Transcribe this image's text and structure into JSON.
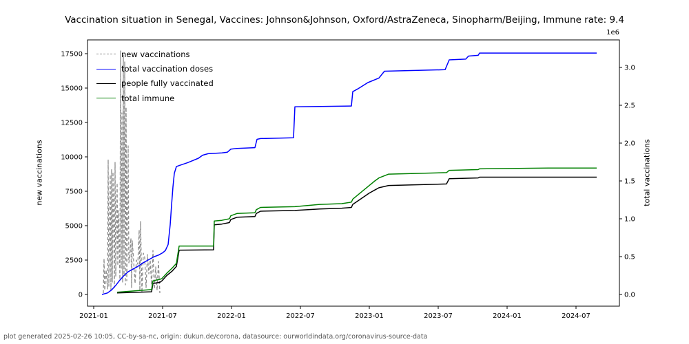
{
  "title": "Vaccination situation in Senegal, Vaccines: Johnson&Johnson, Oxford/AstraZeneca, Sinopharm/Beijing, Immune rate: 9.4",
  "footer": "plot generated 2025-02-26 10:05, CC-by-sa-nc, origin: dukun.de/corona, datasource: ourworldindata.org/coronavirus-source-data",
  "legend": [
    {
      "label": "new vaccinations",
      "color": "#8c8c8c",
      "style": "dashed"
    },
    {
      "label": "total vaccination doses",
      "color": "#0000ff",
      "style": "solid"
    },
    {
      "label": "people fully vaccinated",
      "color": "#000000",
      "style": "solid"
    },
    {
      "label": "total immune",
      "color": "#008000",
      "style": "solid"
    }
  ],
  "chart_data": {
    "type": "line",
    "title": "Vaccination situation in Senegal, Vaccines: Johnson&Johnson, Oxford/AstraZeneca, Sinopharm/Beijing, Immune rate: 9.4",
    "xlabel": "",
    "left_y_axis": {
      "label": "new vaccinations",
      "ticks": [
        0,
        2500,
        5000,
        7500,
        10000,
        12500,
        15000,
        17500
      ],
      "range_top": 18600
    },
    "right_y_axis": {
      "label": "total vaccinations",
      "multiplier_label": "1e6",
      "ticks": [
        "0.0",
        "0.5",
        "1.0",
        "1.5",
        "2.0",
        "2.5",
        "3.0"
      ],
      "tick_values": [
        0.0,
        0.5,
        1.0,
        1.5,
        2.0,
        2.5,
        3.0
      ],
      "range_top": 3.37
    },
    "x_axis": {
      "tick_labels": [
        "2021-01",
        "2021-07",
        "2022-01",
        "2022-07",
        "2023-01",
        "2023-07",
        "2024-01",
        "2024-07"
      ],
      "tick_years": [
        2021.0,
        2021.5,
        2022.0,
        2022.5,
        2023.0,
        2023.5,
        2024.0,
        2024.5
      ],
      "xlim": [
        2020.955,
        2024.815
      ]
    },
    "grid": false,
    "legend_position": "upper-left, frameless",
    "series": [
      {
        "name": "new vaccinations",
        "axis": "left",
        "color": "#8c8c8c",
        "style": "dashed",
        "units": "doses/day",
        "points": [
          [
            2021.07,
            100
          ],
          [
            2021.075,
            2600
          ],
          [
            2021.08,
            300
          ],
          [
            2021.09,
            1800
          ],
          [
            2021.1,
            400
          ],
          [
            2021.105,
            9800
          ],
          [
            2021.11,
            600
          ],
          [
            2021.12,
            8700
          ],
          [
            2021.125,
            300
          ],
          [
            2021.13,
            9100
          ],
          [
            2021.135,
            900
          ],
          [
            2021.14,
            8900
          ],
          [
            2021.15,
            500
          ],
          [
            2021.155,
            9600
          ],
          [
            2021.16,
            1300
          ],
          [
            2021.17,
            8100
          ],
          [
            2021.175,
            2100
          ],
          [
            2021.18,
            6100
          ],
          [
            2021.19,
            1100
          ],
          [
            2021.195,
            17700
          ],
          [
            2021.2,
            1900
          ],
          [
            2021.205,
            13200
          ],
          [
            2021.21,
            900
          ],
          [
            2021.215,
            17400
          ],
          [
            2021.22,
            1400
          ],
          [
            2021.225,
            16900
          ],
          [
            2021.23,
            700
          ],
          [
            2021.235,
            13600
          ],
          [
            2021.24,
            1000
          ],
          [
            2021.25,
            10800
          ],
          [
            2021.255,
            2300
          ],
          [
            2021.26,
            2600
          ],
          [
            2021.27,
            4100
          ],
          [
            2021.275,
            500
          ],
          [
            2021.28,
            3900
          ],
          [
            2021.29,
            2400
          ],
          [
            2021.3,
            800
          ],
          [
            2021.31,
            2500
          ],
          [
            2021.32,
            2200
          ],
          [
            2021.33,
            4700
          ],
          [
            2021.335,
            300
          ],
          [
            2021.34,
            5300
          ],
          [
            2021.35,
            150
          ],
          [
            2021.36,
            3000
          ],
          [
            2021.37,
            2700
          ],
          [
            2021.38,
            500
          ],
          [
            2021.39,
            2900
          ],
          [
            2021.4,
            1500
          ],
          [
            2021.41,
            2500
          ],
          [
            2021.42,
            700
          ],
          [
            2021.43,
            3200
          ],
          [
            2021.44,
            400
          ],
          [
            2021.45,
            2000
          ],
          [
            2021.46,
            300
          ],
          [
            2021.47,
            2400
          ],
          [
            2021.48,
            100
          ]
        ]
      },
      {
        "name": "total vaccination doses",
        "axis": "right",
        "color": "#0000ff",
        "style": "solid",
        "units": "millions",
        "points": [
          [
            2021.06,
            0
          ],
          [
            2021.1,
            0.02
          ],
          [
            2021.13,
            0.06
          ],
          [
            2021.16,
            0.12
          ],
          [
            2021.19,
            0.19
          ],
          [
            2021.22,
            0.25
          ],
          [
            2021.25,
            0.3
          ],
          [
            2021.28,
            0.33
          ],
          [
            2021.32,
            0.37
          ],
          [
            2021.36,
            0.42
          ],
          [
            2021.4,
            0.46
          ],
          [
            2021.44,
            0.5
          ],
          [
            2021.47,
            0.52
          ],
          [
            2021.5,
            0.55
          ],
          [
            2021.52,
            0.58
          ],
          [
            2021.53,
            0.62
          ],
          [
            2021.54,
            0.66
          ],
          [
            2021.555,
            0.92
          ],
          [
            2021.565,
            1.18
          ],
          [
            2021.575,
            1.42
          ],
          [
            2021.585,
            1.6
          ],
          [
            2021.6,
            1.69
          ],
          [
            2021.63,
            1.71
          ],
          [
            2021.68,
            1.74
          ],
          [
            2021.72,
            1.77
          ],
          [
            2021.76,
            1.8
          ],
          [
            2021.79,
            1.84
          ],
          [
            2021.83,
            1.86
          ],
          [
            2021.93,
            1.87
          ],
          [
            2021.97,
            1.88
          ],
          [
            2021.995,
            1.92
          ],
          [
            2022.04,
            1.93
          ],
          [
            2022.17,
            1.94
          ],
          [
            2022.185,
            2.05
          ],
          [
            2022.21,
            2.06
          ],
          [
            2022.45,
            2.07
          ],
          [
            2022.46,
            2.48
          ],
          [
            2022.87,
            2.49
          ],
          [
            2022.88,
            2.68
          ],
          [
            2022.92,
            2.72
          ],
          [
            2022.955,
            2.76
          ],
          [
            2022.99,
            2.8
          ],
          [
            2023.07,
            2.86
          ],
          [
            2023.11,
            2.95
          ],
          [
            2023.55,
            2.97
          ],
          [
            2023.58,
            3.1
          ],
          [
            2023.7,
            3.11
          ],
          [
            2023.72,
            3.15
          ],
          [
            2023.79,
            3.16
          ],
          [
            2023.8,
            3.19
          ],
          [
            2024.65,
            3.19
          ]
        ]
      },
      {
        "name": "people fully vaccinated",
        "axis": "right",
        "color": "#000000",
        "style": "solid",
        "units": "millions",
        "points": [
          [
            2021.17,
            0.02
          ],
          [
            2021.42,
            0.035
          ],
          [
            2021.43,
            0.145
          ],
          [
            2021.48,
            0.16
          ],
          [
            2021.495,
            0.18
          ],
          [
            2021.53,
            0.25
          ],
          [
            2021.57,
            0.31
          ],
          [
            2021.6,
            0.37
          ],
          [
            2021.62,
            0.585
          ],
          [
            2021.87,
            0.59
          ],
          [
            2021.875,
            0.92
          ],
          [
            2021.93,
            0.93
          ],
          [
            2021.985,
            0.95
          ],
          [
            2021.995,
            0.99
          ],
          [
            2022.04,
            1.02
          ],
          [
            2022.17,
            1.03
          ],
          [
            2022.18,
            1.07
          ],
          [
            2022.21,
            1.1
          ],
          [
            2022.46,
            1.11
          ],
          [
            2022.64,
            1.13
          ],
          [
            2022.8,
            1.14
          ],
          [
            2022.87,
            1.15
          ],
          [
            2022.88,
            1.19
          ],
          [
            2022.92,
            1.24
          ],
          [
            2022.96,
            1.29
          ],
          [
            2023.0,
            1.34
          ],
          [
            2023.04,
            1.38
          ],
          [
            2023.07,
            1.41
          ],
          [
            2023.14,
            1.44
          ],
          [
            2023.56,
            1.46
          ],
          [
            2023.58,
            1.53
          ],
          [
            2023.79,
            1.54
          ],
          [
            2023.8,
            1.55
          ],
          [
            2024.65,
            1.55
          ]
        ]
      },
      {
        "name": "total immune",
        "axis": "right",
        "color": "#008000",
        "style": "solid",
        "units": "millions",
        "points": [
          [
            2021.17,
            0.03
          ],
          [
            2021.42,
            0.065
          ],
          [
            2021.43,
            0.18
          ],
          [
            2021.48,
            0.2
          ],
          [
            2021.495,
            0.21
          ],
          [
            2021.53,
            0.28
          ],
          [
            2021.57,
            0.35
          ],
          [
            2021.6,
            0.41
          ],
          [
            2021.62,
            0.64
          ],
          [
            2021.87,
            0.64
          ],
          [
            2021.875,
            0.97
          ],
          [
            2021.93,
            0.98
          ],
          [
            2021.985,
            1.0
          ],
          [
            2021.995,
            1.04
          ],
          [
            2022.04,
            1.07
          ],
          [
            2022.17,
            1.08
          ],
          [
            2022.18,
            1.12
          ],
          [
            2022.21,
            1.15
          ],
          [
            2022.46,
            1.16
          ],
          [
            2022.64,
            1.19
          ],
          [
            2022.8,
            1.2
          ],
          [
            2022.87,
            1.22
          ],
          [
            2022.88,
            1.26
          ],
          [
            2022.92,
            1.32
          ],
          [
            2022.96,
            1.38
          ],
          [
            2023.0,
            1.44
          ],
          [
            2023.04,
            1.5
          ],
          [
            2023.07,
            1.54
          ],
          [
            2023.14,
            1.59
          ],
          [
            2023.56,
            1.61
          ],
          [
            2023.58,
            1.64
          ],
          [
            2023.79,
            1.65
          ],
          [
            2023.8,
            1.66
          ],
          [
            2024.3,
            1.67
          ],
          [
            2024.65,
            1.67
          ]
        ]
      }
    ]
  }
}
